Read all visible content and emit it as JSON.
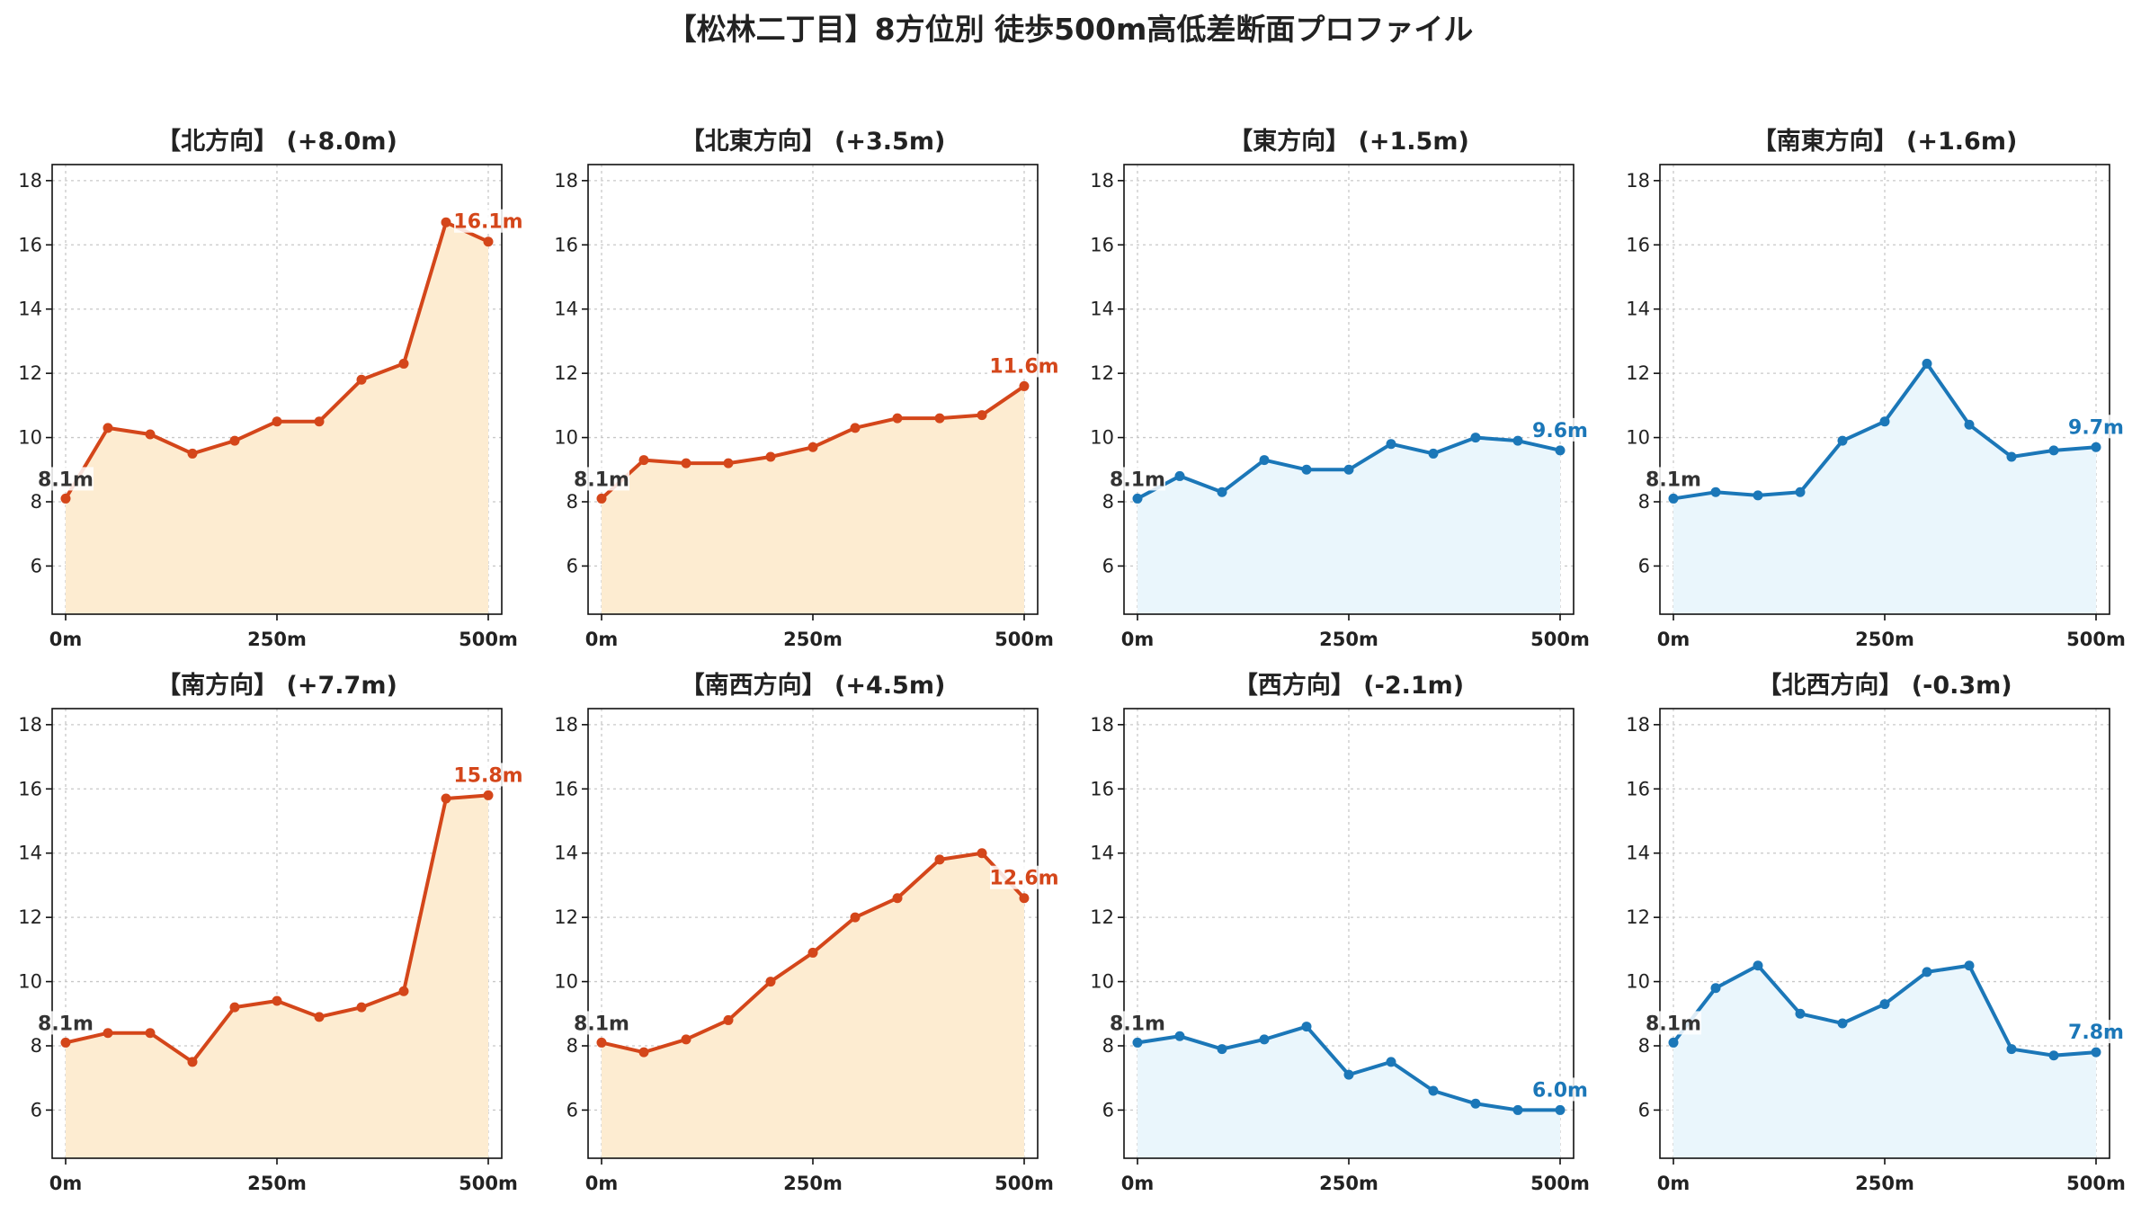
{
  "figure_title": "【松林二丁目】8方位別 徒歩500m高低差断面プロファイル",
  "colors": {
    "up_line": "#d4461a",
    "up_fill": "#fdecd1",
    "down_line": "#1b77b8",
    "down_fill": "#eaf6fc",
    "start_label": "#333333"
  },
  "chart_data": [
    {
      "type": "line",
      "title": "【北方向】 (+8.0m)",
      "trend": "up",
      "x": [
        0,
        50,
        100,
        150,
        200,
        250,
        300,
        350,
        400,
        450,
        500
      ],
      "y": [
        8.1,
        10.3,
        10.1,
        9.5,
        9.9,
        10.5,
        10.5,
        11.8,
        12.3,
        16.7,
        16.1
      ],
      "start_label": "8.1m",
      "end_label": "16.1m",
      "ylim": [
        4.5,
        18.5
      ],
      "yticks": [
        6,
        8,
        10,
        12,
        14,
        16,
        18
      ],
      "xticks": [
        0,
        250,
        500
      ],
      "xtick_labels": [
        "0m",
        "250m",
        "500m"
      ],
      "grid": true
    },
    {
      "type": "line",
      "title": "【北東方向】 (+3.5m)",
      "trend": "up",
      "x": [
        0,
        50,
        100,
        150,
        200,
        250,
        300,
        350,
        400,
        450,
        500
      ],
      "y": [
        8.1,
        9.3,
        9.2,
        9.2,
        9.4,
        9.7,
        10.3,
        10.6,
        10.6,
        10.7,
        11.6
      ],
      "start_label": "8.1m",
      "end_label": "11.6m",
      "ylim": [
        4.5,
        18.5
      ],
      "yticks": [
        6,
        8,
        10,
        12,
        14,
        16,
        18
      ],
      "xticks": [
        0,
        250,
        500
      ],
      "xtick_labels": [
        "0m",
        "250m",
        "500m"
      ],
      "grid": true
    },
    {
      "type": "line",
      "title": "【東方向】 (+1.5m)",
      "trend": "down",
      "x": [
        0,
        50,
        100,
        150,
        200,
        250,
        300,
        350,
        400,
        450,
        500
      ],
      "y": [
        8.1,
        8.8,
        8.3,
        9.3,
        9.0,
        9.0,
        9.8,
        9.5,
        10.0,
        9.9,
        9.6
      ],
      "start_label": "8.1m",
      "end_label": "9.6m",
      "ylim": [
        4.5,
        18.5
      ],
      "yticks": [
        6,
        8,
        10,
        12,
        14,
        16,
        18
      ],
      "xticks": [
        0,
        250,
        500
      ],
      "xtick_labels": [
        "0m",
        "250m",
        "500m"
      ],
      "grid": true
    },
    {
      "type": "line",
      "title": "【南東方向】 (+1.6m)",
      "trend": "down",
      "x": [
        0,
        50,
        100,
        150,
        200,
        250,
        300,
        350,
        400,
        450,
        500
      ],
      "y": [
        8.1,
        8.3,
        8.2,
        8.3,
        9.9,
        10.5,
        12.3,
        10.4,
        9.4,
        9.6,
        9.7
      ],
      "start_label": "8.1m",
      "end_label": "9.7m",
      "ylim": [
        4.5,
        18.5
      ],
      "yticks": [
        6,
        8,
        10,
        12,
        14,
        16,
        18
      ],
      "xticks": [
        0,
        250,
        500
      ],
      "xtick_labels": [
        "0m",
        "250m",
        "500m"
      ],
      "grid": true
    },
    {
      "type": "line",
      "title": "【南方向】 (+7.7m)",
      "trend": "up",
      "x": [
        0,
        50,
        100,
        150,
        200,
        250,
        300,
        350,
        400,
        450,
        500
      ],
      "y": [
        8.1,
        8.4,
        8.4,
        7.5,
        9.2,
        9.4,
        8.9,
        9.2,
        9.7,
        15.7,
        15.8
      ],
      "start_label": "8.1m",
      "end_label": "15.8m",
      "ylim": [
        4.5,
        18.5
      ],
      "yticks": [
        6,
        8,
        10,
        12,
        14,
        16,
        18
      ],
      "xticks": [
        0,
        250,
        500
      ],
      "xtick_labels": [
        "0m",
        "250m",
        "500m"
      ],
      "grid": true
    },
    {
      "type": "line",
      "title": "【南西方向】 (+4.5m)",
      "trend": "up",
      "x": [
        0,
        50,
        100,
        150,
        200,
        250,
        300,
        350,
        400,
        450,
        500
      ],
      "y": [
        8.1,
        7.8,
        8.2,
        8.8,
        10.0,
        10.9,
        12.0,
        12.6,
        13.8,
        14.0,
        12.6
      ],
      "start_label": "8.1m",
      "end_label": "12.6m",
      "ylim": [
        4.5,
        18.5
      ],
      "yticks": [
        6,
        8,
        10,
        12,
        14,
        16,
        18
      ],
      "xticks": [
        0,
        250,
        500
      ],
      "xtick_labels": [
        "0m",
        "250m",
        "500m"
      ],
      "grid": true
    },
    {
      "type": "line",
      "title": "【西方向】 (-2.1m)",
      "trend": "down",
      "x": [
        0,
        50,
        100,
        150,
        200,
        250,
        300,
        350,
        400,
        450,
        500
      ],
      "y": [
        8.1,
        8.3,
        7.9,
        8.2,
        8.6,
        7.1,
        7.5,
        6.6,
        6.2,
        6.0,
        6.0
      ],
      "start_label": "8.1m",
      "end_label": "6.0m",
      "ylim": [
        4.5,
        18.5
      ],
      "yticks": [
        6,
        8,
        10,
        12,
        14,
        16,
        18
      ],
      "xticks": [
        0,
        250,
        500
      ],
      "xtick_labels": [
        "0m",
        "250m",
        "500m"
      ],
      "grid": true
    },
    {
      "type": "line",
      "title": "【北西方向】 (-0.3m)",
      "trend": "down",
      "x": [
        0,
        50,
        100,
        150,
        200,
        250,
        300,
        350,
        400,
        450,
        500
      ],
      "y": [
        8.1,
        9.8,
        10.5,
        9.0,
        8.7,
        9.3,
        10.3,
        10.5,
        7.9,
        7.7,
        7.8
      ],
      "start_label": "8.1m",
      "end_label": "7.8m",
      "ylim": [
        4.5,
        18.5
      ],
      "yticks": [
        6,
        8,
        10,
        12,
        14,
        16,
        18
      ],
      "xticks": [
        0,
        250,
        500
      ],
      "xtick_labels": [
        "0m",
        "250m",
        "500m"
      ],
      "grid": true
    }
  ]
}
